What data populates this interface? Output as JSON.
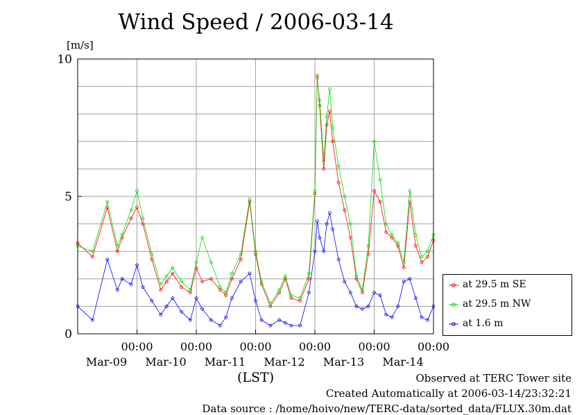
{
  "title": "Wind Speed / 2006-03-14",
  "y_unit": "[m/s]",
  "x_unit": "(LST)",
  "footer": {
    "observed": "Observed at TERC Tower site",
    "created": "Created Automatically at 2006-03-14/23:32:21",
    "source": "Data source : /home/hoivo/new/TERC-data/sorted_data/FLUX.30m.dat"
  },
  "colors": {
    "se": "#ff0000",
    "nw": "#00dd00",
    "low": "#0000ff",
    "grid": "#a0a0a0"
  },
  "chart_data": {
    "type": "line",
    "ylim": [
      0,
      10
    ],
    "yticks": [
      "0",
      "5",
      "10"
    ],
    "x_tick_labels": [
      {
        "time": "00:00",
        "date": "Mar-09"
      },
      {
        "time": "00:00",
        "date": "Mar-10"
      },
      {
        "time": "00:00",
        "date": "Mar-11"
      },
      {
        "time": "00:00",
        "date": "Mar-12"
      },
      {
        "time": "00:00",
        "date": "Mar-13"
      },
      {
        "time": "00:00",
        "date": "Mar-14"
      }
    ],
    "x_day_range": [
      -1.0,
      5.0
    ],
    "grid": true,
    "legend_position": "right",
    "series": [
      {
        "name": "at 29.5 m SE",
        "key": "se",
        "x": [
          -1.0,
          -0.75,
          -0.5,
          -0.33,
          -0.25,
          -0.1,
          0.0,
          0.1,
          0.25,
          0.4,
          0.5,
          0.6,
          0.75,
          0.9,
          1.0,
          1.1,
          1.25,
          1.4,
          1.5,
          1.6,
          1.75,
          1.9,
          2.0,
          2.1,
          2.25,
          2.4,
          2.5,
          2.6,
          2.75,
          2.9,
          3.0,
          3.04,
          3.08,
          3.15,
          3.2,
          3.25,
          3.3,
          3.4,
          3.5,
          3.6,
          3.7,
          3.8,
          3.9,
          4.0,
          4.1,
          4.2,
          4.3,
          4.4,
          4.5,
          4.6,
          4.7,
          4.8,
          4.9,
          5.0
        ],
        "y": [
          3.3,
          2.8,
          4.6,
          3.0,
          3.5,
          4.2,
          4.6,
          4.0,
          2.7,
          1.6,
          1.9,
          2.2,
          1.7,
          1.5,
          2.4,
          1.9,
          2.0,
          1.6,
          1.4,
          2.0,
          2.7,
          4.8,
          2.9,
          1.8,
          1.0,
          1.5,
          2.0,
          1.3,
          1.2,
          2.0,
          5.1,
          9.4,
          8.3,
          6.0,
          7.6,
          8.1,
          7.0,
          5.5,
          4.5,
          3.5,
          2.0,
          1.5,
          2.9,
          5.2,
          4.8,
          3.7,
          3.5,
          3.2,
          2.4,
          4.8,
          3.2,
          2.6,
          2.8,
          3.4
        ]
      },
      {
        "name": "at 29.5 m NW",
        "key": "nw",
        "x": [
          -1.0,
          -0.75,
          -0.5,
          -0.33,
          -0.25,
          -0.1,
          0.0,
          0.1,
          0.25,
          0.4,
          0.5,
          0.6,
          0.75,
          0.9,
          1.0,
          1.1,
          1.25,
          1.4,
          1.5,
          1.6,
          1.75,
          1.9,
          2.0,
          2.1,
          2.25,
          2.4,
          2.5,
          2.6,
          2.75,
          2.9,
          3.0,
          3.04,
          3.08,
          3.15,
          3.2,
          3.25,
          3.3,
          3.4,
          3.5,
          3.6,
          3.7,
          3.8,
          3.9,
          4.0,
          4.1,
          4.2,
          4.3,
          4.4,
          4.5,
          4.6,
          4.7,
          4.8,
          4.9,
          5.0
        ],
        "y": [
          3.2,
          3.0,
          4.8,
          3.2,
          3.6,
          4.5,
          5.2,
          4.2,
          2.9,
          1.8,
          2.1,
          2.4,
          1.9,
          1.6,
          2.6,
          3.5,
          2.6,
          1.7,
          1.5,
          2.2,
          2.9,
          4.9,
          3.0,
          1.9,
          1.1,
          1.6,
          2.1,
          1.4,
          1.3,
          2.2,
          5.2,
          9.3,
          8.5,
          6.3,
          7.9,
          8.9,
          7.5,
          6.1,
          5.0,
          4.0,
          2.1,
          1.6,
          3.2,
          7.0,
          5.6,
          4.0,
          3.6,
          3.3,
          2.6,
          5.2,
          3.6,
          2.8,
          3.0,
          3.6
        ]
      },
      {
        "name": "at 1.6 m",
        "key": "low",
        "x": [
          -1.0,
          -0.75,
          -0.5,
          -0.33,
          -0.25,
          -0.1,
          0.0,
          0.1,
          0.25,
          0.4,
          0.5,
          0.6,
          0.75,
          0.9,
          1.0,
          1.1,
          1.25,
          1.4,
          1.5,
          1.6,
          1.75,
          1.9,
          2.0,
          2.1,
          2.25,
          2.4,
          2.5,
          2.6,
          2.75,
          2.9,
          3.0,
          3.04,
          3.08,
          3.15,
          3.2,
          3.25,
          3.3,
          3.4,
          3.5,
          3.6,
          3.7,
          3.8,
          3.9,
          4.0,
          4.1,
          4.2,
          4.3,
          4.4,
          4.5,
          4.6,
          4.7,
          4.8,
          4.9,
          5.0
        ],
        "y": [
          1.0,
          0.5,
          2.7,
          1.6,
          2.0,
          1.8,
          2.5,
          1.7,
          1.2,
          0.7,
          1.0,
          1.3,
          0.8,
          0.5,
          1.3,
          0.9,
          0.5,
          0.3,
          0.6,
          1.3,
          1.9,
          2.2,
          1.2,
          0.5,
          0.3,
          0.5,
          0.4,
          0.3,
          0.3,
          1.5,
          3.0,
          4.1,
          3.5,
          3.0,
          4.0,
          4.4,
          3.8,
          2.7,
          1.9,
          1.5,
          1.0,
          0.9,
          1.0,
          1.5,
          1.4,
          0.7,
          0.6,
          1.0,
          1.9,
          2.0,
          1.3,
          0.6,
          0.5,
          1.0
        ]
      }
    ]
  }
}
